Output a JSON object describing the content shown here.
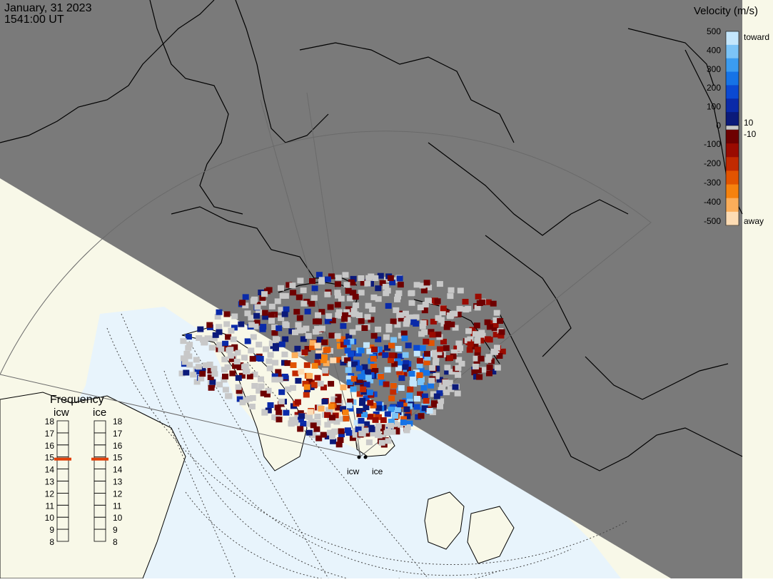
{
  "header": {
    "date": "January, 31 2023",
    "time": "1541:00 UT"
  },
  "colorbar": {
    "title": "Velocity (m/s)",
    "ticks_positive": [
      "500",
      "400",
      "300",
      "200",
      "100",
      "0"
    ],
    "ticks_negative": [
      "-100",
      "-200",
      "-300",
      "-400",
      "-500"
    ],
    "zero_labels": [
      "10",
      "-10"
    ],
    "toward_label": "toward",
    "away_label": "away",
    "toward_colors": [
      "#0b1a7a",
      "#0a2aa8",
      "#0b49d2",
      "#1673e6",
      "#3b9cf0",
      "#7cc4f7",
      "#c4e6fc"
    ],
    "away_colors": [
      "#6e0000",
      "#9a0b00",
      "#c22a00",
      "#e25400",
      "#f6820e",
      "#fcae5a",
      "#fddcb4"
    ],
    "neutral_color": "#c8c8c8"
  },
  "frequency": {
    "title": "Frequency",
    "radars": [
      {
        "name": "icw",
        "selected": 15
      },
      {
        "name": "ice",
        "selected": 15
      }
    ],
    "scale": [
      "18",
      "17",
      "16",
      "15",
      "14",
      "13",
      "12",
      "11",
      "10",
      "9",
      "8"
    ]
  },
  "stations": {
    "icw": "icw",
    "ice": "ice"
  },
  "colors": {
    "night": "#7a7a7a",
    "day_land": "#f8f8e8",
    "day_ocean": "#e8f4fc",
    "coast": "#000000",
    "grid": "#9a9a9a"
  }
}
